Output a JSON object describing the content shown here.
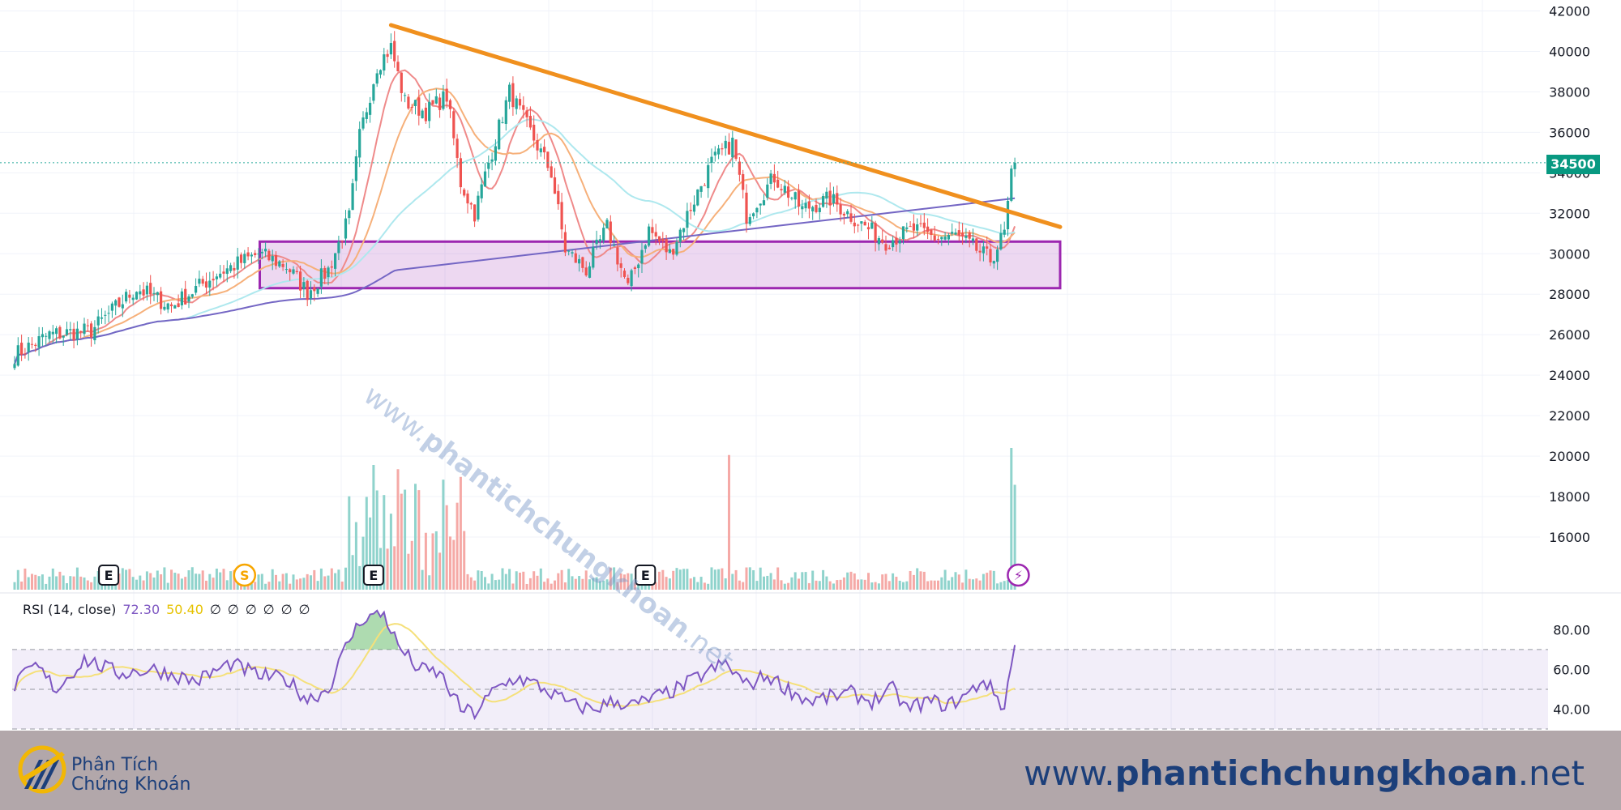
{
  "chart_data": [
    {
      "type": "candlestick",
      "price_axis": {
        "ticks": [
          16000,
          18000,
          20000,
          22000,
          24000,
          26000,
          28000,
          30000,
          32000,
          34000,
          36000,
          38000,
          40000,
          42000
        ],
        "ylim": [
          15000,
          42300
        ]
      },
      "last_price_label": "34500",
      "last_price": 34500,
      "ohlc_anchors": [
        {
          "i": 0,
          "close": 25000
        },
        {
          "i": 10,
          "close": 26000
        },
        {
          "i": 22,
          "close": 26200
        },
        {
          "i": 35,
          "close": 28300
        },
        {
          "i": 45,
          "close": 27400
        },
        {
          "i": 58,
          "close": 29000
        },
        {
          "i": 70,
          "close": 30000
        },
        {
          "i": 78,
          "close": 29400
        },
        {
          "i": 84,
          "close": 28100
        },
        {
          "i": 90,
          "close": 29200
        },
        {
          "i": 96,
          "close": 31800
        },
        {
          "i": 99,
          "close": 35800
        },
        {
          "i": 104,
          "close": 39300
        },
        {
          "i": 108,
          "close": 40200
        },
        {
          "i": 112,
          "close": 37500
        },
        {
          "i": 118,
          "close": 37000
        },
        {
          "i": 124,
          "close": 37800
        },
        {
          "i": 128,
          "close": 33500
        },
        {
          "i": 132,
          "close": 32000
        },
        {
          "i": 136,
          "close": 34500
        },
        {
          "i": 142,
          "close": 38000
        },
        {
          "i": 148,
          "close": 36000
        },
        {
          "i": 154,
          "close": 34000
        },
        {
          "i": 158,
          "close": 30200
        },
        {
          "i": 164,
          "close": 29200
        },
        {
          "i": 170,
          "close": 31300
        },
        {
          "i": 176,
          "close": 28300
        },
        {
          "i": 182,
          "close": 31200
        },
        {
          "i": 188,
          "close": 30000
        },
        {
          "i": 194,
          "close": 32300
        },
        {
          "i": 200,
          "close": 34500
        },
        {
          "i": 206,
          "close": 35500
        },
        {
          "i": 210,
          "close": 31900
        },
        {
          "i": 218,
          "close": 33800
        },
        {
          "i": 226,
          "close": 32200
        },
        {
          "i": 234,
          "close": 32700
        },
        {
          "i": 242,
          "close": 31600
        },
        {
          "i": 250,
          "close": 30600
        },
        {
          "i": 258,
          "close": 31200
        },
        {
          "i": 264,
          "close": 30800
        },
        {
          "i": 270,
          "close": 30900
        },
        {
          "i": 276,
          "close": 30200
        },
        {
          "i": 280,
          "close": 29700
        },
        {
          "i": 284,
          "close": 31000
        },
        {
          "i": 286,
          "close": 33800
        },
        {
          "i": 287,
          "close": 34500
        }
      ],
      "bars": 288,
      "trendline": {
        "from": {
          "i": 108,
          "price": 41300
        },
        "to": {
          "i": 287,
          "price": 32000
        },
        "extend_to_i": 300,
        "color": "#f0901e"
      },
      "support_zone": {
        "from_i": 75,
        "to_i": 300,
        "low": 28300,
        "high": 30600,
        "color": "#9c27b0"
      },
      "moving_averages": [
        {
          "period": 10,
          "color": "#ef8a8a"
        },
        {
          "period": 20,
          "color": "#f6b07a"
        },
        {
          "period": 50,
          "color": "#aee8ee"
        },
        {
          "period": 200,
          "color": "#7466c4"
        }
      ],
      "event_markers": [
        {
          "label": "E",
          "i": 27
        },
        {
          "label": "S",
          "i": 66
        },
        {
          "label": "E",
          "i": 103
        },
        {
          "label": "E",
          "i": 181
        },
        {
          "label": "⚡",
          "i": 288
        }
      ]
    },
    {
      "type": "line",
      "title": "RSI (14, close)",
      "legend_values": [
        "72.30",
        "50.40",
        "∅",
        "∅",
        "∅",
        "∅",
        "∅",
        "∅"
      ],
      "series": [
        {
          "name": "RSI",
          "color": "#7e57c2",
          "last": 72.3
        },
        {
          "name": "MA",
          "color": "#f5e07a",
          "last": 50.4
        }
      ],
      "axis_ticks": [
        "40.00",
        "60.00",
        "80.00"
      ],
      "ylim": [
        30,
        92
      ],
      "bands": {
        "upper": 70,
        "middle": 50,
        "lower": 30
      }
    }
  ],
  "colors": {
    "up": "#26a69a",
    "down": "#ef5350",
    "vol_up": "#8fd3cc",
    "vol_down": "#f5a9a6",
    "grid": "#f0f3fa"
  },
  "watermark": {
    "prefix": "www.",
    "bold": "phantichchungkhoan",
    "suffix": ".net"
  },
  "footer": {
    "logo_line1": "Phân Tích",
    "logo_line2": "Chứng Khoán",
    "url_prefix": "www.",
    "url_bold": "phantichchungkhoan",
    "url_suffix": ".net"
  }
}
